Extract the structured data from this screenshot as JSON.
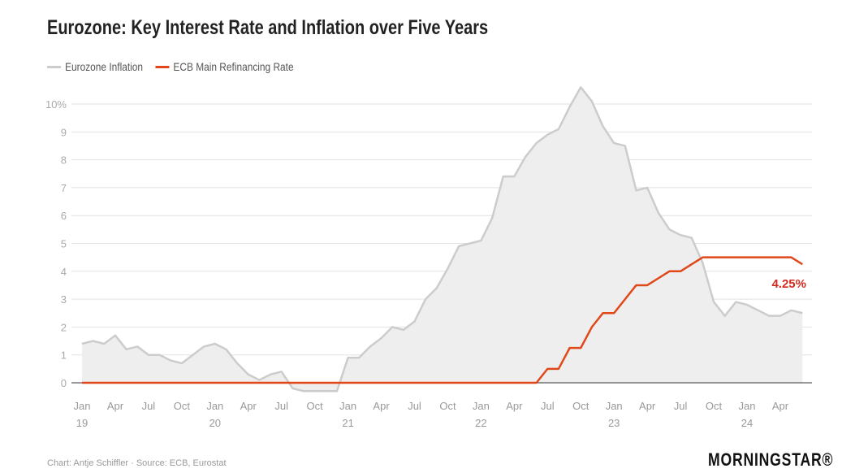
{
  "chart_data": {
    "type": "line",
    "title": "Eurozone: Key Interest Rate and Inflation over Five Years",
    "xlabel": "",
    "ylabel": "",
    "ylim": [
      0,
      10
    ],
    "yticks": [
      "0",
      "1",
      "2",
      "3",
      "4",
      "5",
      "6",
      "7",
      "8",
      "9",
      "10%"
    ],
    "xticks": [
      {
        "month": "Jan",
        "year": "19"
      },
      {
        "month": "Apr",
        "year": ""
      },
      {
        "month": "Jul",
        "year": ""
      },
      {
        "month": "Oct",
        "year": ""
      },
      {
        "month": "Jan",
        "year": "20"
      },
      {
        "month": "Apr",
        "year": ""
      },
      {
        "month": "Jul",
        "year": ""
      },
      {
        "month": "Oct",
        "year": ""
      },
      {
        "month": "Jan",
        "year": "21"
      },
      {
        "month": "Apr",
        "year": ""
      },
      {
        "month": "Jul",
        "year": ""
      },
      {
        "month": "Oct",
        "year": ""
      },
      {
        "month": "Jan",
        "year": "22"
      },
      {
        "month": "Apr",
        "year": ""
      },
      {
        "month": "Jul",
        "year": ""
      },
      {
        "month": "Oct",
        "year": ""
      },
      {
        "month": "Jan",
        "year": "23"
      },
      {
        "month": "Apr",
        "year": ""
      },
      {
        "month": "Jul",
        "year": ""
      },
      {
        "month": "Oct",
        "year": ""
      },
      {
        "month": "Jan",
        "year": "24"
      },
      {
        "month": "Apr",
        "year": ""
      }
    ],
    "x_start": "2019-01",
    "x_end": "2024-06",
    "grid": true,
    "legend_position": "top-left",
    "series": [
      {
        "name": "Eurozone Inflation",
        "color": "#cccccc",
        "fill": "#eeeeee",
        "values": [
          1.4,
          1.5,
          1.4,
          1.7,
          1.2,
          1.3,
          1.0,
          1.0,
          0.8,
          0.7,
          1.0,
          1.3,
          1.4,
          1.2,
          0.7,
          0.3,
          0.1,
          0.3,
          0.4,
          -0.2,
          -0.3,
          -0.3,
          -0.3,
          -0.3,
          0.9,
          0.9,
          1.3,
          1.6,
          2.0,
          1.9,
          2.2,
          3.0,
          3.4,
          4.1,
          4.9,
          5.0,
          5.1,
          5.9,
          7.4,
          7.4,
          8.1,
          8.6,
          8.9,
          9.1,
          9.9,
          10.6,
          10.1,
          9.2,
          8.6,
          8.5,
          6.9,
          7.0,
          6.1,
          5.5,
          5.3,
          5.2,
          4.3,
          2.9,
          2.4,
          2.9,
          2.8,
          2.6,
          2.4,
          2.4,
          2.6,
          2.5
        ]
      },
      {
        "name": "ECB Main Refinancing Rate",
        "color": "#e0481a",
        "values": [
          0,
          0,
          0,
          0,
          0,
          0,
          0,
          0,
          0,
          0,
          0,
          0,
          0,
          0,
          0,
          0,
          0,
          0,
          0,
          0,
          0,
          0,
          0,
          0,
          0,
          0,
          0,
          0,
          0,
          0,
          0,
          0,
          0,
          0,
          0,
          0,
          0,
          0,
          0,
          0,
          0,
          0,
          0.5,
          0.5,
          1.25,
          1.25,
          2.0,
          2.5,
          2.5,
          3.0,
          3.5,
          3.5,
          3.75,
          4.0,
          4.0,
          4.25,
          4.5,
          4.5,
          4.5,
          4.5,
          4.5,
          4.5,
          4.5,
          4.5,
          4.5,
          4.25
        ]
      }
    ],
    "annotations": [
      {
        "text": "4.25%",
        "color": "#d52b1e",
        "series": "ECB Main Refinancing Rate"
      }
    ]
  },
  "footer": {
    "credit": "Chart: Antje Schiffler · Source: ECB, Eurostat",
    "logo": "MORNINGSTAR®"
  }
}
